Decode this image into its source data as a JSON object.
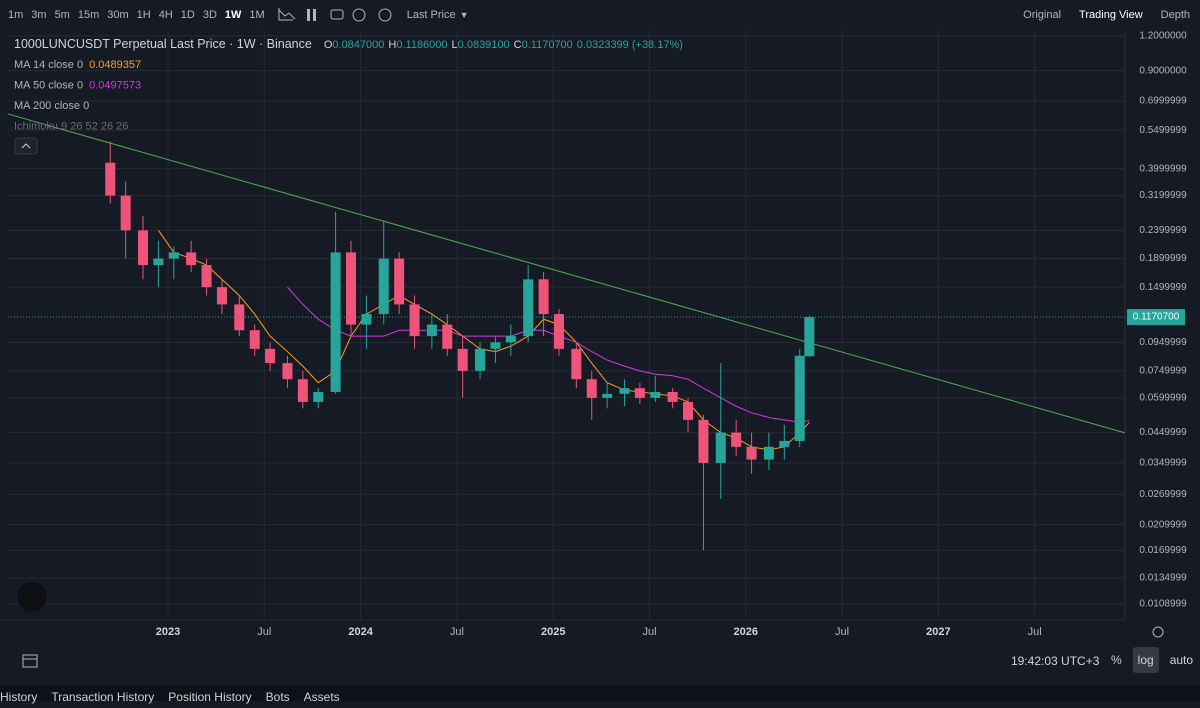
{
  "toolbar": {
    "intervals": [
      "1m",
      "3m",
      "5m",
      "15m",
      "30m",
      "1H",
      "4H",
      "1D",
      "3D",
      "1W",
      "1M"
    ],
    "active_interval": "1W",
    "price_source": "Last Price",
    "views": [
      "Original",
      "Trading View",
      "Depth"
    ],
    "active_view": "Trading View"
  },
  "legend": {
    "symbol": "1000LUNCUSDT Perpetual Last Price · 1W · Binance",
    "ohlc": [
      {
        "label": "O",
        "value": "0.0847000"
      },
      {
        "label": "H",
        "value": "0.1186000"
      },
      {
        "label": "L",
        "value": "0.0839100"
      },
      {
        "label": "C",
        "value": "0.1170700"
      }
    ],
    "change": "0.0323399 (+38.17%)",
    "indicators": [
      {
        "label": "MA 14 close 0",
        "value": "0.0489357",
        "color": "#f7a21b"
      },
      {
        "label": "MA 50 close 0",
        "value": "0.0497573",
        "color": "#d13adb"
      },
      {
        "label": "MA 200 close 0"
      },
      {
        "label": "Ichimoku 9 26 52 26 26"
      }
    ]
  },
  "chart_data": {
    "type": "candlestick",
    "log_scale": true,
    "grid": true,
    "up_color": "#26a69a",
    "down_color": "#ef5379",
    "x": [
      2022.7,
      2022.78,
      2022.87,
      2022.95,
      2023.03,
      2023.12,
      2023.2,
      2023.28,
      2023.37,
      2023.45,
      2023.53,
      2023.62,
      2023.7,
      2023.78,
      2023.87,
      2023.95,
      2024.03,
      2024.12,
      2024.2,
      2024.28,
      2024.37,
      2024.45,
      2024.53,
      2024.62,
      2024.7,
      2024.78,
      2024.87,
      2024.95,
      2025.03,
      2025.12,
      2025.2,
      2025.28,
      2025.37,
      2025.45,
      2025.53,
      2025.62,
      2025.7,
      2025.78,
      2025.87,
      2025.95,
      2026.03,
      2026.12,
      2026.2,
      2026.28,
      2026.33
    ],
    "open": [
      0.42,
      0.32,
      0.24,
      0.18,
      0.19,
      0.2,
      0.18,
      0.15,
      0.13,
      0.105,
      0.09,
      0.08,
      0.07,
      0.058,
      0.063,
      0.2,
      0.11,
      0.12,
      0.19,
      0.13,
      0.1,
      0.11,
      0.09,
      0.075,
      0.09,
      0.095,
      0.1,
      0.16,
      0.12,
      0.09,
      0.07,
      0.06,
      0.062,
      0.065,
      0.06,
      0.063,
      0.058,
      0.05,
      0.035,
      0.045,
      0.04,
      0.036,
      0.04,
      0.042,
      0.0847
    ],
    "high": [
      0.5,
      0.36,
      0.27,
      0.22,
      0.21,
      0.22,
      0.19,
      0.16,
      0.14,
      0.11,
      0.095,
      0.085,
      0.075,
      0.065,
      0.28,
      0.22,
      0.14,
      0.26,
      0.2,
      0.14,
      0.12,
      0.12,
      0.1,
      0.095,
      0.1,
      0.11,
      0.18,
      0.17,
      0.125,
      0.095,
      0.075,
      0.068,
      0.07,
      0.068,
      0.072,
      0.065,
      0.06,
      0.052,
      0.08,
      0.05,
      0.045,
      0.045,
      0.048,
      0.09,
      0.1186
    ],
    "low": [
      0.3,
      0.19,
      0.16,
      0.15,
      0.16,
      0.17,
      0.14,
      0.12,
      0.1,
      0.085,
      0.075,
      0.065,
      0.055,
      0.055,
      0.062,
      0.1,
      0.09,
      0.11,
      0.12,
      0.09,
      0.09,
      0.085,
      0.06,
      0.07,
      0.08,
      0.085,
      0.095,
      0.1,
      0.085,
      0.065,
      0.05,
      0.055,
      0.056,
      0.057,
      0.058,
      0.055,
      0.045,
      0.017,
      0.026,
      0.037,
      0.032,
      0.033,
      0.036,
      0.04,
      0.0839
    ],
    "close": [
      0.32,
      0.24,
      0.18,
      0.19,
      0.2,
      0.18,
      0.15,
      0.13,
      0.105,
      0.09,
      0.08,
      0.07,
      0.058,
      0.063,
      0.2,
      0.11,
      0.12,
      0.19,
      0.13,
      0.1,
      0.11,
      0.09,
      0.075,
      0.09,
      0.095,
      0.1,
      0.16,
      0.12,
      0.09,
      0.07,
      0.06,
      0.062,
      0.065,
      0.06,
      0.063,
      0.058,
      0.05,
      0.035,
      0.045,
      0.04,
      0.036,
      0.04,
      0.042,
      0.085,
      0.11707
    ],
    "moving_averages": [
      {
        "name": "MA 14",
        "color": "#f7a21b",
        "values": [
          null,
          null,
          null,
          0.24,
          0.2,
          0.19,
          0.18,
          0.16,
          0.14,
          0.12,
          0.1,
          0.088,
          0.078,
          0.068,
          0.075,
          0.1,
          0.12,
          0.13,
          0.14,
          0.13,
          0.12,
          0.11,
          0.1,
          0.09,
          0.088,
          0.092,
          0.1,
          0.115,
          0.11,
          0.095,
          0.08,
          0.068,
          0.064,
          0.063,
          0.062,
          0.061,
          0.058,
          0.05,
          0.045,
          0.043,
          0.04,
          0.039,
          0.04,
          0.045,
          0.0489357
        ]
      },
      {
        "name": "MA 50",
        "color": "#d13adb",
        "values": [
          null,
          null,
          null,
          null,
          null,
          null,
          null,
          null,
          null,
          null,
          null,
          0.15,
          0.13,
          0.115,
          0.105,
          0.1,
          0.1,
          0.1,
          0.105,
          0.105,
          0.105,
          0.105,
          0.1,
          0.1,
          0.1,
          0.1,
          0.105,
          0.105,
          0.1,
          0.095,
          0.088,
          0.082,
          0.078,
          0.075,
          0.073,
          0.072,
          0.07,
          0.065,
          0.06,
          0.056,
          0.053,
          0.051,
          0.05,
          0.049,
          0.0497573
        ]
      }
    ],
    "trendline": {
      "color": "#4caf50",
      "x": [
        2022.169,
        2027.969
      ],
      "values": [
        0.629,
        0.0449
      ]
    },
    "last_price": {
      "value": 0.11707,
      "label": "0.1170700",
      "color": "#26a69a"
    },
    "xlim": [
      2022.169,
      2027.969
    ],
    "xticks": [
      {
        "value": 2023.0,
        "label": "2023"
      },
      {
        "value": 2023.5,
        "label": "Jul"
      },
      {
        "value": 2024.0,
        "label": "2024"
      },
      {
        "value": 2024.5,
        "label": "Jul"
      },
      {
        "value": 2025.0,
        "label": "2025"
      },
      {
        "value": 2025.5,
        "label": "Jul"
      },
      {
        "value": 2026.0,
        "label": "2026"
      },
      {
        "value": 2026.5,
        "label": "Jul"
      },
      {
        "value": 2027.0,
        "label": "2027"
      },
      {
        "value": 2027.5,
        "label": "Jul"
      }
    ],
    "ylim": [
      0.00954,
      1.26
    ],
    "yticks": [
      {
        "value": 1.2,
        "label": "1.2000000"
      },
      {
        "value": 0.9,
        "label": "0.9000000"
      },
      {
        "value": 0.7,
        "label": "0.6999999"
      },
      {
        "value": 0.55,
        "label": "0.5499999"
      },
      {
        "value": 0.4,
        "label": "0.3999999"
      },
      {
        "value": 0.32,
        "label": "0.3199999"
      },
      {
        "value": 0.24,
        "label": "0.2399999"
      },
      {
        "value": 0.19,
        "label": "0.1899999"
      },
      {
        "value": 0.15,
        "label": "0.1499999"
      },
      {
        "value": 0.095,
        "label": "0.0949999"
      },
      {
        "value": 0.075,
        "label": "0.0749999"
      },
      {
        "value": 0.06,
        "label": "0.0599999"
      },
      {
        "value": 0.045,
        "label": "0.0449999"
      },
      {
        "value": 0.035,
        "label": "0.0349999"
      },
      {
        "value": 0.027,
        "label": "0.0269999"
      },
      {
        "value": 0.021,
        "label": "0.0209999"
      },
      {
        "value": 0.017,
        "label": "0.0169999"
      },
      {
        "value": 0.0135,
        "label": "0.0134999"
      },
      {
        "value": 0.0109,
        "label": "0.0108999"
      }
    ]
  },
  "bottom_bar": {
    "time": "19:42:03 UTC+3",
    "buttons": [
      "%",
      "log",
      "auto"
    ],
    "active_button": "log"
  },
  "tabs": [
    "History",
    "Transaction History",
    "Position History",
    "Bots",
    "Assets"
  ]
}
